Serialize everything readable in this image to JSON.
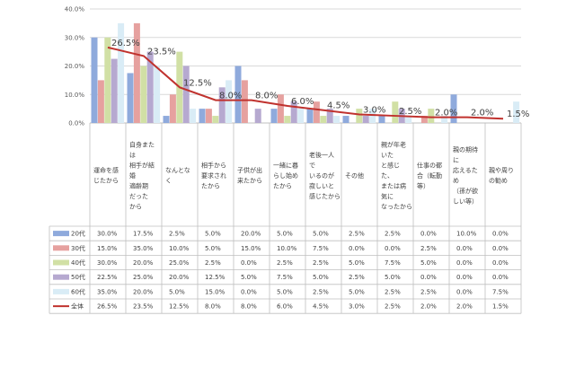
{
  "chart_data": {
    "type": "bar",
    "ylim": [
      0,
      40
    ],
    "y_ticks": [
      "0.0%",
      "10.0%",
      "20.0%",
      "30.0%",
      "40.0%"
    ],
    "grid": true,
    "legend": "data-table",
    "categories": [
      [
        "運命を感",
        "じたから"
      ],
      [
        "自身また",
        "は",
        "相手が結",
        "婚",
        "適齢期",
        "だった",
        "から"
      ],
      [
        "なんとな",
        "く"
      ],
      [
        "相手から",
        "要求され",
        "たから"
      ],
      [
        "子供が出",
        "来たから"
      ],
      [
        "一緒に暮",
        "らし始め",
        "たから"
      ],
      [
        "老後一人",
        "で",
        "いるのが",
        "寂しいと",
        "感じたから"
      ],
      [
        "その他"
      ],
      [
        "親が年老",
        "いた",
        "と感じ",
        "た、",
        "または病",
        "気に",
        "なったから"
      ],
      [
        "仕事の都",
        "合（転勤",
        "等）"
      ],
      [
        "親の期待",
        "に",
        "応えるた",
        "め",
        "（孫が欲",
        "しい等）"
      ],
      [
        "親や周り",
        "の勧め"
      ]
    ],
    "series": [
      {
        "name": "20代",
        "color": "#8faadc",
        "values": [
          30.0,
          17.5,
          2.5,
          5.0,
          20.0,
          5.0,
          5.0,
          2.5,
          2.5,
          0.0,
          10.0,
          0.0
        ],
        "labels": [
          "30.0%",
          "17.5%",
          "2.5%",
          "5.0%",
          "20.0%",
          "5.0%",
          "5.0%",
          "2.5%",
          "2.5%",
          "0.0%",
          "10.0%",
          "0.0%"
        ]
      },
      {
        "name": "30代",
        "color": "#e6a19f",
        "values": [
          15.0,
          35.0,
          10.0,
          5.0,
          15.0,
          10.0,
          7.5,
          0.0,
          0.0,
          2.5,
          0.0,
          0.0
        ],
        "labels": [
          "15.0%",
          "35.0%",
          "10.0%",
          "5.0%",
          "15.0%",
          "10.0%",
          "7.5%",
          "0.0%",
          "0.0%",
          "2.5%",
          "0.0%",
          "0.0%"
        ]
      },
      {
        "name": "40代",
        "color": "#d1e0a5",
        "values": [
          30.0,
          20.0,
          25.0,
          2.5,
          0.0,
          2.5,
          2.5,
          5.0,
          7.5,
          5.0,
          0.0,
          0.0
        ],
        "labels": [
          "30.0%",
          "20.0%",
          "25.0%",
          "2.5%",
          "0.0%",
          "2.5%",
          "2.5%",
          "5.0%",
          "7.5%",
          "5.0%",
          "0.0%",
          "0.0%"
        ]
      },
      {
        "name": "50代",
        "color": "#b6a9d0",
        "values": [
          22.5,
          25.0,
          20.0,
          12.5,
          5.0,
          7.5,
          5.0,
          2.5,
          5.0,
          0.0,
          0.0,
          0.0
        ],
        "labels": [
          "22.5%",
          "25.0%",
          "20.0%",
          "12.5%",
          "5.0%",
          "7.5%",
          "5.0%",
          "2.5%",
          "5.0%",
          "0.0%",
          "0.0%",
          "0.0%"
        ]
      },
      {
        "name": "60代",
        "color": "#d9ecf6",
        "values": [
          35.0,
          20.0,
          5.0,
          15.0,
          0.0,
          5.0,
          2.5,
          5.0,
          2.5,
          2.5,
          0.0,
          7.5
        ],
        "labels": [
          "35.0%",
          "20.0%",
          "5.0%",
          "15.0%",
          "0.0%",
          "5.0%",
          "2.5%",
          "5.0%",
          "2.5%",
          "2.5%",
          "0.0%",
          "7.5%"
        ]
      }
    ],
    "total": {
      "name": "全体",
      "color": "#c0322e",
      "values": [
        26.5,
        23.5,
        12.5,
        8.0,
        8.0,
        6.0,
        4.5,
        3.0,
        2.5,
        2.0,
        2.0,
        1.5
      ],
      "labels": [
        "26.5%",
        "23.5%",
        "12.5%",
        "8.0%",
        "8.0%",
        "6.0%",
        "4.5%",
        "3.0%",
        "2.5%",
        "2.0%",
        "2.0%",
        "1.5%"
      ]
    }
  }
}
